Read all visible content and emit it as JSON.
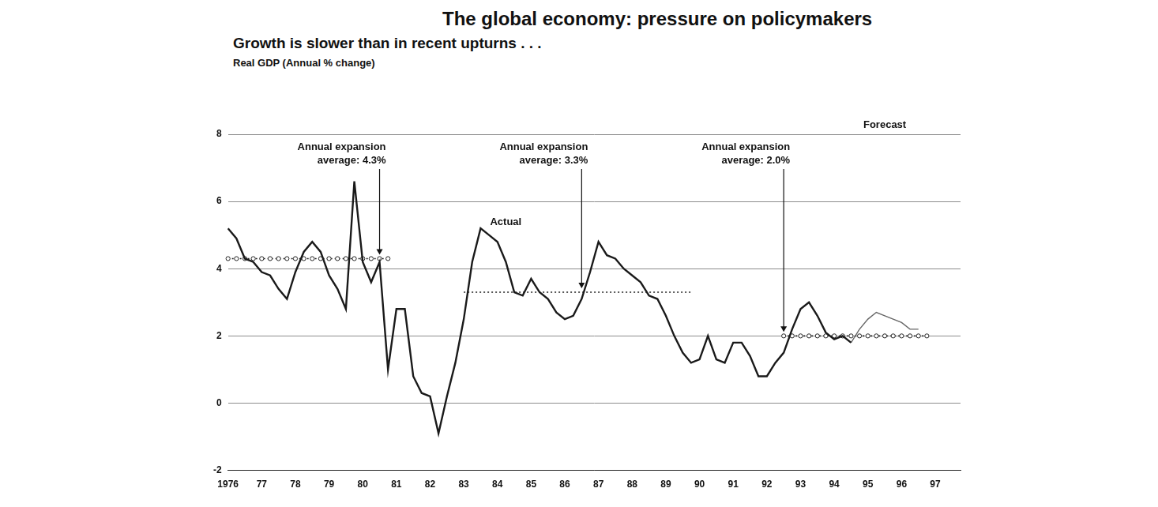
{
  "chart_data": {
    "type": "line",
    "title": "The global economy: pressure on policymakers",
    "subtitle": "Growth is slower than in recent upturns . . .",
    "ylabel": "Real GDP (Annual % change)",
    "categories": [
      "1976",
      null,
      null,
      null,
      "77",
      null,
      null,
      null,
      "78",
      null,
      null,
      null,
      "79",
      null,
      null,
      null,
      "80",
      null,
      null,
      null,
      "81",
      null,
      null,
      null,
      "82",
      null,
      null,
      null,
      "83",
      null,
      null,
      null,
      "84",
      null,
      null,
      null,
      "85",
      null,
      null,
      null,
      "86",
      null,
      null,
      null,
      "87",
      null,
      null,
      null,
      "88",
      null,
      null,
      null,
      "89",
      null,
      null,
      null,
      "90",
      null,
      null,
      null,
      "91",
      null,
      null,
      null,
      "92",
      null,
      null,
      null,
      "93",
      null,
      null,
      null,
      "94",
      null,
      null,
      null,
      "95",
      null,
      null,
      null,
      "96",
      null,
      null,
      null,
      "97",
      null,
      null,
      null
    ],
    "series": [
      {
        "name": "Actual",
        "color": "#1a1a1a",
        "line_style": "solid",
        "marker": "none",
        "values": [
          5.2,
          4.9,
          4.3,
          4.2,
          3.9,
          3.8,
          3.4,
          3.1,
          3.9,
          4.5,
          4.8,
          4.5,
          3.8,
          3.4,
          2.8,
          6.6,
          4.2,
          3.6,
          4.2,
          1.0,
          2.8,
          2.8,
          0.8,
          0.3,
          0.2,
          -0.9,
          0.2,
          1.2,
          2.5,
          4.2,
          5.2,
          5.0,
          4.8,
          4.2,
          3.3,
          3.2,
          3.7,
          3.3,
          3.1,
          2.7,
          2.5,
          2.6,
          3.1,
          3.9,
          4.8,
          4.4,
          4.3,
          4.0,
          3.8,
          3.6,
          3.2,
          3.1,
          2.6,
          2.0,
          1.5,
          1.2,
          1.3,
          2.0,
          1.3,
          1.2,
          1.8,
          1.8,
          1.4,
          0.8,
          0.8,
          1.2,
          1.5,
          2.2,
          2.8,
          3.0,
          2.6,
          2.1,
          1.9,
          2.0,
          1.8,
          null,
          null,
          null,
          null,
          null,
          null,
          null,
          null,
          null,
          null,
          null,
          null,
          null
        ]
      },
      {
        "name": "Forecast",
        "color": "#666666",
        "line_style": "solid",
        "marker": "none",
        "values": [
          null,
          null,
          null,
          null,
          null,
          null,
          null,
          null,
          null,
          null,
          null,
          null,
          null,
          null,
          null,
          null,
          null,
          null,
          null,
          null,
          null,
          null,
          null,
          null,
          null,
          null,
          null,
          null,
          null,
          null,
          null,
          null,
          null,
          null,
          null,
          null,
          null,
          null,
          null,
          null,
          null,
          null,
          null,
          null,
          null,
          null,
          null,
          null,
          null,
          null,
          null,
          null,
          null,
          null,
          null,
          null,
          null,
          null,
          null,
          null,
          null,
          null,
          null,
          null,
          null,
          null,
          null,
          null,
          null,
          null,
          null,
          null,
          null,
          null,
          1.8,
          2.2,
          2.5,
          2.7,
          2.6,
          2.5,
          2.4,
          2.2,
          2.2,
          null,
          null,
          null,
          null,
          null
        ]
      },
      {
        "name": "Annual expansion average: 4.3%",
        "color": "#222222",
        "line_style": "dotted",
        "marker": "circle",
        "values": [
          4.3,
          4.3,
          4.3,
          4.3,
          4.3,
          4.3,
          4.3,
          4.3,
          4.3,
          4.3,
          4.3,
          4.3,
          4.3,
          4.3,
          4.3,
          4.3,
          4.3,
          4.3,
          4.3,
          4.3,
          null,
          null,
          null,
          null,
          null,
          null,
          null,
          null,
          null,
          null,
          null,
          null,
          null,
          null,
          null,
          null,
          null,
          null,
          null,
          null,
          null,
          null,
          null,
          null,
          null,
          null,
          null,
          null,
          null,
          null,
          null,
          null,
          null,
          null,
          null,
          null,
          null,
          null,
          null,
          null,
          null,
          null,
          null,
          null,
          null,
          null,
          null,
          null,
          null,
          null,
          null,
          null,
          null,
          null,
          null,
          null,
          null,
          null,
          null,
          null,
          null,
          null,
          null,
          null,
          null,
          null,
          null,
          null
        ]
      },
      {
        "name": "Annual expansion average: 3.3%",
        "color": "#222222",
        "line_style": "dotted",
        "marker": "none",
        "values": [
          null,
          null,
          null,
          null,
          null,
          null,
          null,
          null,
          null,
          null,
          null,
          null,
          null,
          null,
          null,
          null,
          null,
          null,
          null,
          null,
          null,
          null,
          null,
          null,
          null,
          null,
          null,
          null,
          3.3,
          3.3,
          3.3,
          3.3,
          3.3,
          3.3,
          3.3,
          3.3,
          3.3,
          3.3,
          3.3,
          3.3,
          3.3,
          3.3,
          3.3,
          3.3,
          3.3,
          3.3,
          3.3,
          3.3,
          3.3,
          3.3,
          3.3,
          3.3,
          3.3,
          3.3,
          3.3,
          3.3,
          null,
          null,
          null,
          null,
          null,
          null,
          null,
          null,
          null,
          null,
          null,
          null,
          null,
          null,
          null,
          null,
          null,
          null,
          null,
          null,
          null,
          null,
          null,
          null,
          null,
          null,
          null,
          null,
          null,
          null,
          null,
          null
        ]
      },
      {
        "name": "Annual expansion average: 2.0%",
        "color": "#222222",
        "line_style": "dotted",
        "marker": "circle",
        "values": [
          null,
          null,
          null,
          null,
          null,
          null,
          null,
          null,
          null,
          null,
          null,
          null,
          null,
          null,
          null,
          null,
          null,
          null,
          null,
          null,
          null,
          null,
          null,
          null,
          null,
          null,
          null,
          null,
          null,
          null,
          null,
          null,
          null,
          null,
          null,
          null,
          null,
          null,
          null,
          null,
          null,
          null,
          null,
          null,
          null,
          null,
          null,
          null,
          null,
          null,
          null,
          null,
          null,
          null,
          null,
          null,
          null,
          null,
          null,
          null,
          null,
          null,
          null,
          null,
          null,
          null,
          2.0,
          2.0,
          2.0,
          2.0,
          2.0,
          2.0,
          2.0,
          2.0,
          2.0,
          2.0,
          2.0,
          2.0,
          2.0,
          2.0,
          2.0,
          2.0,
          2.0,
          2.0,
          null,
          null,
          null,
          null
        ]
      }
    ],
    "ylim": [
      -2,
      8
    ],
    "yticks": [
      -2,
      0,
      2,
      4,
      6,
      8
    ],
    "grid": true
  }
}
